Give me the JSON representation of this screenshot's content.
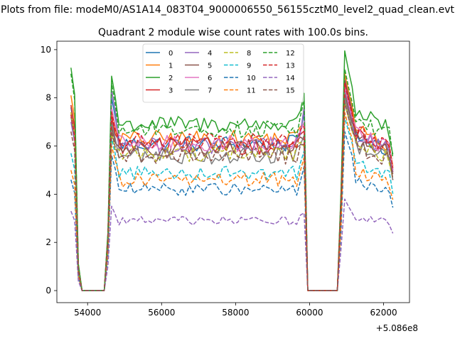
{
  "figure": {
    "suptitle": "Plots from file: modeM0/AS1A14_083T04_9000006550_56155cztM0_level2_quad_clean.evt"
  },
  "chart_data": {
    "type": "line",
    "title": "Quadrant 2 module wise count rates with 100.0s bins.",
    "xlabel": "",
    "ylabel": "",
    "offset_label": "+5.086e8",
    "xlim": [
      53170,
      62700
    ],
    "ylim": [
      -0.5,
      10.35
    ],
    "x_ticks": [
      54000,
      56000,
      58000,
      60000,
      62000
    ],
    "x_tick_labels": [
      "54000",
      "56000",
      "58000",
      "60000",
      "62000"
    ],
    "y_ticks": [
      0,
      2,
      4,
      6,
      8,
      10
    ],
    "y_tick_labels": [
      "0",
      "2",
      "4",
      "6",
      "8",
      "10"
    ],
    "legend_loc": "upper center",
    "x": {
      "segments": [
        {
          "start": 53550,
          "step": 100,
          "count": 28
        },
        {
          "start": 56350,
          "step": 100,
          "count": 36
        },
        {
          "start": 59950,
          "step": 100,
          "count": 24
        }
      ]
    },
    "gaps": [
      [
        53850,
        54450
      ],
      [
        59950,
        60750
      ]
    ],
    "series": [
      {
        "name": "0",
        "style": "solid",
        "color": "#1f77b4",
        "base": 6.1,
        "noise": 0.35,
        "peak1": 7.6,
        "peak2": 8.0,
        "peak3": 8.8
      },
      {
        "name": "1",
        "style": "solid",
        "color": "#ff7f0e",
        "base": 6.3,
        "noise": 0.35,
        "peak1": 8.1,
        "peak2": 7.5,
        "peak3": 9.0
      },
      {
        "name": "2",
        "style": "solid",
        "color": "#2ca02c",
        "base": 6.9,
        "noise": 0.35,
        "peak1": 9.25,
        "peak2": 8.9,
        "peak3": 9.95
      },
      {
        "name": "3",
        "style": "solid",
        "color": "#d62728",
        "base": 6.0,
        "noise": 0.35,
        "peak1": 7.7,
        "peak2": 7.2,
        "peak3": 8.7
      },
      {
        "name": "4",
        "style": "solid",
        "color": "#9467bd",
        "base": 6.0,
        "noise": 0.35,
        "peak1": 7.0,
        "peak2": 8.3,
        "peak3": 8.4
      },
      {
        "name": "5",
        "style": "solid",
        "color": "#8c564b",
        "base": 5.9,
        "noise": 0.35,
        "peak1": 7.3,
        "peak2": 6.8,
        "peak3": 8.2
      },
      {
        "name": "6",
        "style": "solid",
        "color": "#e377c2",
        "base": 6.1,
        "noise": 0.35,
        "peak1": 7.4,
        "peak2": 7.6,
        "peak3": 8.5
      },
      {
        "name": "7",
        "style": "solid",
        "color": "#7f7f7f",
        "base": 5.6,
        "noise": 0.35,
        "peak1": 7.2,
        "peak2": 7.0,
        "peak3": 8.0
      },
      {
        "name": "8",
        "style": "dashed",
        "color": "#bcbd22",
        "base": 5.7,
        "noise": 0.35,
        "peak1": 7.4,
        "peak2": 6.5,
        "peak3": 7.8
      },
      {
        "name": "9",
        "style": "dashed",
        "color": "#17becf",
        "base": 4.9,
        "noise": 0.3,
        "peak1": 5.7,
        "peak2": 6.3,
        "peak3": 7.2
      },
      {
        "name": "10",
        "style": "dashed",
        "color": "#1f77b4",
        "base": 4.2,
        "noise": 0.25,
        "peak1": 4.6,
        "peak2": 5.6,
        "peak3": 6.6
      },
      {
        "name": "11",
        "style": "dashed",
        "color": "#ff7f0e",
        "base": 4.6,
        "noise": 0.3,
        "peak1": 5.0,
        "peak2": 6.0,
        "peak3": 7.4
      },
      {
        "name": "12",
        "style": "dashed",
        "color": "#2ca02c",
        "base": 6.7,
        "noise": 0.35,
        "peak1": 9.0,
        "peak2": 8.6,
        "peak3": 9.2
      },
      {
        "name": "13",
        "style": "dashed",
        "color": "#d62728",
        "base": 6.2,
        "noise": 0.35,
        "peak1": 7.3,
        "peak2": 7.4,
        "peak3": 8.6
      },
      {
        "name": "14",
        "style": "dashed",
        "color": "#9467bd",
        "base": 2.9,
        "noise": 0.18,
        "peak1": 3.3,
        "peak2": 3.5,
        "peak3": 3.8
      },
      {
        "name": "15",
        "style": "dashed",
        "color": "#8c564b",
        "base": 5.6,
        "noise": 0.35,
        "peak1": 6.6,
        "peak2": 6.6,
        "peak3": 7.8
      }
    ]
  }
}
